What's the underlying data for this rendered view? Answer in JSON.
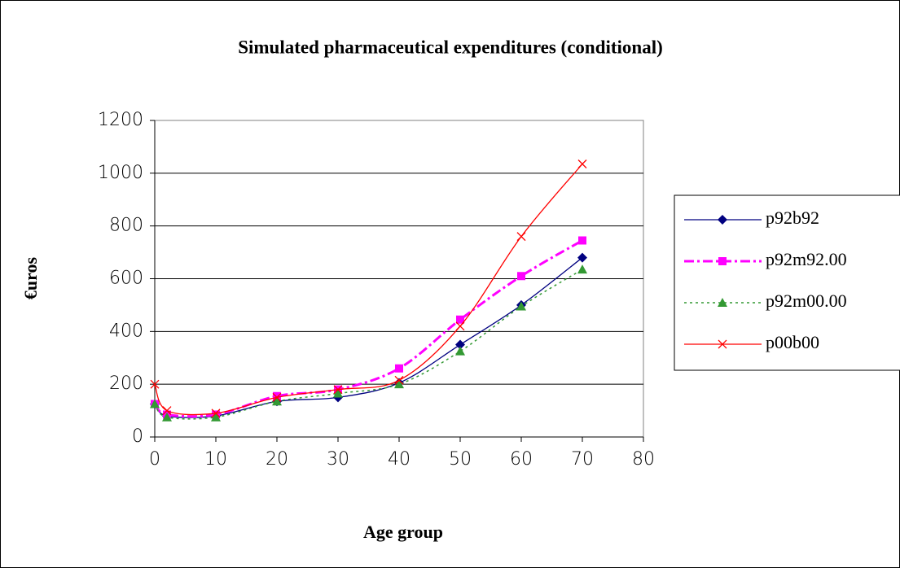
{
  "chart_data": {
    "type": "line",
    "title": "Simulated pharmaceutical expenditures (conditional)",
    "x_label": "Age group",
    "y_label": "€uros",
    "x": [
      0,
      2,
      10,
      20,
      30,
      40,
      50,
      60,
      70
    ],
    "series": [
      {
        "name": "p92b92",
        "color": "#000080",
        "marker": "diamond",
        "dash": "solid",
        "values": [
          125,
          80,
          80,
          135,
          150,
          205,
          350,
          500,
          680
        ]
      },
      {
        "name": "p92m92.00",
        "color": "#ff00ff",
        "marker": "square",
        "dash": "dashdot",
        "values": [
          125,
          85,
          85,
          155,
          180,
          260,
          445,
          610,
          745
        ]
      },
      {
        "name": "p92m00.00",
        "color": "#339933",
        "marker": "triangle",
        "dash": "dot",
        "values": [
          125,
          75,
          75,
          135,
          165,
          200,
          325,
          495,
          635
        ]
      },
      {
        "name": "p00b00",
        "color": "#ff0000",
        "marker": "x",
        "dash": "solid",
        "values": [
          200,
          100,
          90,
          150,
          180,
          215,
          420,
          760,
          1035
        ]
      }
    ],
    "xlim": [
      0,
      80
    ],
    "xticks": [
      0,
      10,
      20,
      30,
      40,
      50,
      60,
      70,
      80
    ],
    "ylim": [
      0,
      1200
    ],
    "yticks": [
      0,
      200,
      400,
      600,
      800,
      1000,
      1200
    ],
    "grid": true,
    "legend": "right"
  }
}
